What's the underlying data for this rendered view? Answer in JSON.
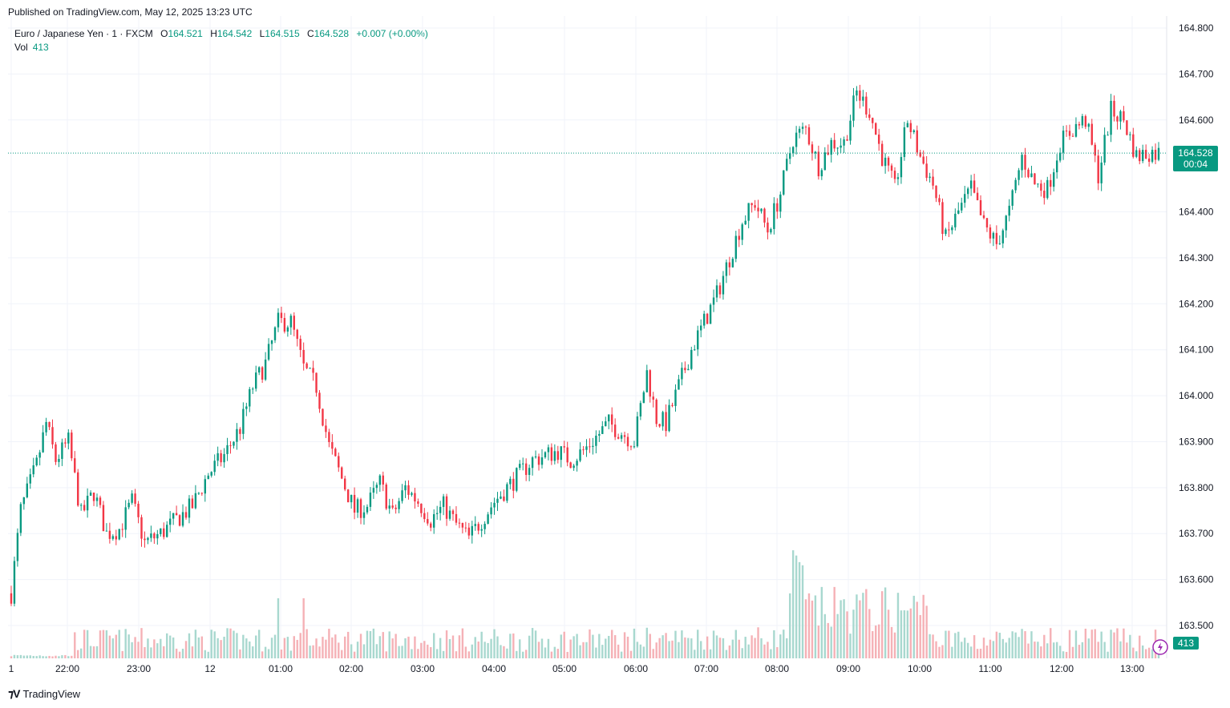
{
  "header": {
    "published": "Published on TradingView.com, May 12, 2025 13:23 UTC"
  },
  "legend": {
    "symbol": "Euro / Japanese Yen · 1 · FXCM",
    "open_label": "O",
    "open": "164.521",
    "high_label": "H",
    "high": "164.542",
    "low_label": "L",
    "low": "164.515",
    "close_label": "C",
    "close": "164.528",
    "change": "+0.007 (+0.00%)"
  },
  "volume": {
    "label": "Vol",
    "value": "413"
  },
  "price_badge": {
    "price": "164.528",
    "countdown": "00:04"
  },
  "volume_badge": "413",
  "footer": {
    "brand": "TradingView"
  },
  "colors": {
    "up": "#089981",
    "down": "#f23645",
    "up_vol": "#a8d8cf",
    "down_vol": "#f5b1b6",
    "accent": "#089981"
  },
  "icons": {
    "brand": "tradingview-logo-icon",
    "replay": "lightning-icon"
  },
  "chart_data": {
    "type": "candlestick",
    "x_tick_labels": [
      "1",
      "22:00",
      "23:00",
      "12",
      "01:00",
      "02:00",
      "03:00",
      "04:00",
      "05:00",
      "06:00",
      "07:00",
      "08:00",
      "09:00",
      "10:00",
      "11:00",
      "12:00",
      "13:00"
    ],
    "y_tick_labels": [
      "164.800",
      "164.700",
      "164.600",
      "164.400",
      "164.300",
      "164.200",
      "164.100",
      "164.000",
      "163.900",
      "163.800",
      "163.700",
      "163.600",
      "163.500"
    ],
    "ylim": [
      163.45,
      164.82
    ],
    "last_price": 164.528,
    "price_path": [
      [
        0,
        163.57
      ],
      [
        3,
        163.75
      ],
      [
        8,
        163.85
      ],
      [
        11,
        163.94
      ],
      [
        14,
        163.86
      ],
      [
        18,
        163.9
      ],
      [
        22,
        163.74
      ],
      [
        26,
        163.79
      ],
      [
        30,
        163.7
      ],
      [
        34,
        163.71
      ],
      [
        38,
        163.77
      ],
      [
        42,
        163.68
      ],
      [
        47,
        163.7
      ],
      [
        52,
        163.73
      ],
      [
        57,
        163.76
      ],
      [
        62,
        163.83
      ],
      [
        67,
        163.87
      ],
      [
        72,
        163.93
      ],
      [
        76,
        164.02
      ],
      [
        80,
        164.07
      ],
      [
        84,
        164.16
      ],
      [
        88,
        164.16
      ],
      [
        92,
        164.06
      ],
      [
        96,
        164.02
      ],
      [
        100,
        163.89
      ],
      [
        104,
        163.82
      ],
      [
        108,
        163.75
      ],
      [
        112,
        163.76
      ],
      [
        116,
        163.81
      ],
      [
        120,
        163.74
      ],
      [
        124,
        163.8
      ],
      [
        128,
        163.77
      ],
      [
        132,
        163.73
      ],
      [
        136,
        163.76
      ],
      [
        140,
        163.72
      ],
      [
        144,
        163.69
      ],
      [
        148,
        163.73
      ],
      [
        152,
        163.77
      ],
      [
        156,
        163.8
      ],
      [
        160,
        163.83
      ],
      [
        164,
        163.86
      ],
      [
        168,
        163.87
      ],
      [
        172,
        163.88
      ],
      [
        176,
        163.86
      ],
      [
        180,
        163.88
      ],
      [
        184,
        163.91
      ],
      [
        188,
        163.94
      ],
      [
        192,
        163.92
      ],
      [
        196,
        163.9
      ],
      [
        200,
        164.05
      ],
      [
        203,
        163.95
      ],
      [
        206,
        163.94
      ],
      [
        210,
        164.02
      ],
      [
        214,
        164.1
      ],
      [
        218,
        164.16
      ],
      [
        222,
        164.22
      ],
      [
        226,
        164.3
      ],
      [
        230,
        164.38
      ],
      [
        234,
        164.42
      ],
      [
        238,
        164.36
      ],
      [
        242,
        164.44
      ],
      [
        246,
        164.56
      ],
      [
        250,
        164.58
      ],
      [
        254,
        164.5
      ],
      [
        258,
        164.55
      ],
      [
        262,
        164.55
      ],
      [
        266,
        164.66
      ],
      [
        270,
        164.62
      ],
      [
        274,
        164.52
      ],
      [
        278,
        164.45
      ],
      [
        282,
        164.6
      ],
      [
        286,
        164.52
      ],
      [
        290,
        164.46
      ],
      [
        294,
        164.34
      ],
      [
        298,
        164.4
      ],
      [
        302,
        164.45
      ],
      [
        306,
        164.37
      ],
      [
        310,
        164.33
      ],
      [
        314,
        164.4
      ],
      [
        318,
        164.52
      ],
      [
        322,
        164.46
      ],
      [
        326,
        164.45
      ],
      [
        330,
        164.55
      ],
      [
        334,
        164.58
      ],
      [
        338,
        164.6
      ],
      [
        342,
        164.48
      ],
      [
        346,
        164.62
      ],
      [
        350,
        164.6
      ],
      [
        354,
        164.52
      ],
      [
        358,
        164.53
      ],
      [
        361,
        164.528
      ]
    ]
  }
}
